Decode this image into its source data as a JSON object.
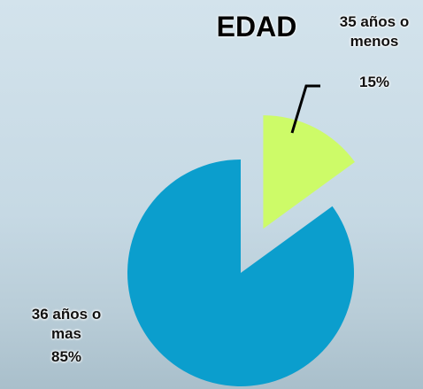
{
  "chart_data": {
    "type": "pie",
    "title": "EDAD",
    "categories": [
      "35 años o menos",
      "36 años o mas"
    ],
    "values": [
      15,
      85
    ],
    "value_labels": [
      "15%",
      "85%"
    ],
    "colors": [
      "#cdfb68",
      "#0b9ecd"
    ],
    "explode": [
      true,
      false
    ]
  }
}
